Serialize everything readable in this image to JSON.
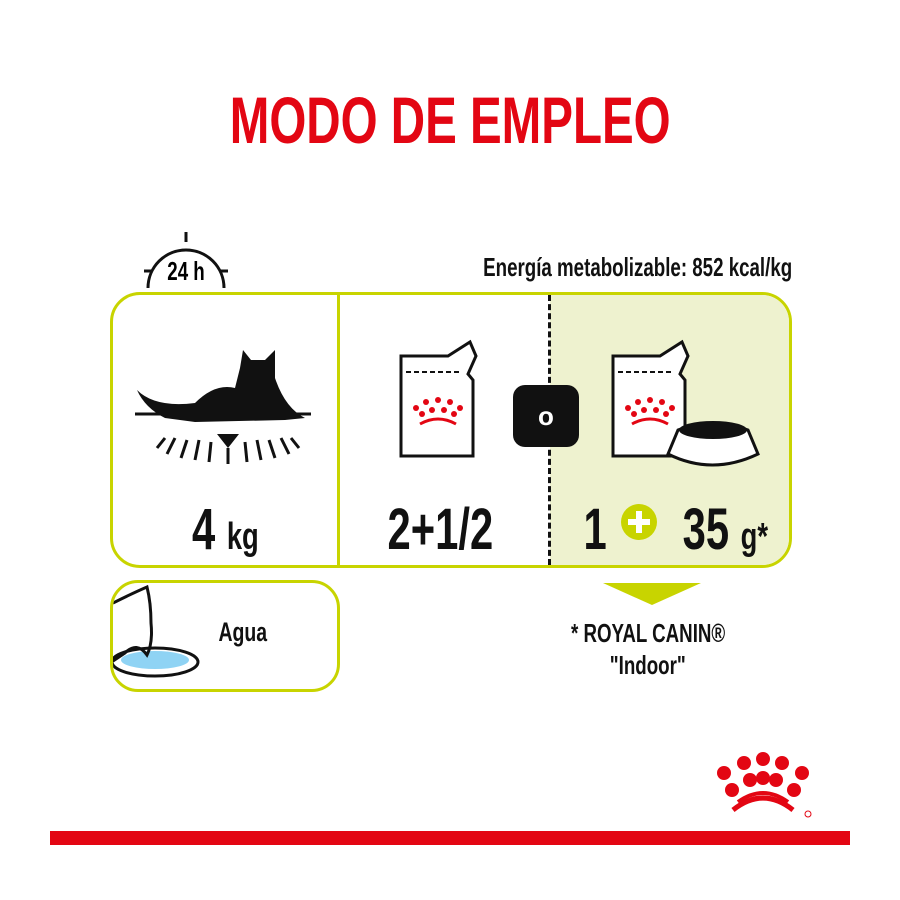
{
  "title": "MODO DE EMPLEO",
  "clock_label": "24 h",
  "energy": "Energía metabolizable: 852 kcal/kg",
  "weight": {
    "value": "4",
    "unit": "kg"
  },
  "option1": "2+1/2",
  "or_label": "o",
  "option2": {
    "pouches": "1",
    "grams": "35",
    "unit": "g*"
  },
  "water": "Agua",
  "note": {
    "line1": "* ROYAL CANIN®",
    "line2": "\"Indoor\""
  },
  "colors": {
    "brand_red": "#e30613",
    "accent_green": "#c8d400",
    "panel_bg": "#eef2cf",
    "water_blue": "#8fd3f4"
  },
  "icons": [
    "clock-icon",
    "cat-lying-icon",
    "pouch-icon",
    "bowl-icon",
    "plus-icon",
    "cat-drinking-icon",
    "royal-canin-crown-logo"
  ]
}
